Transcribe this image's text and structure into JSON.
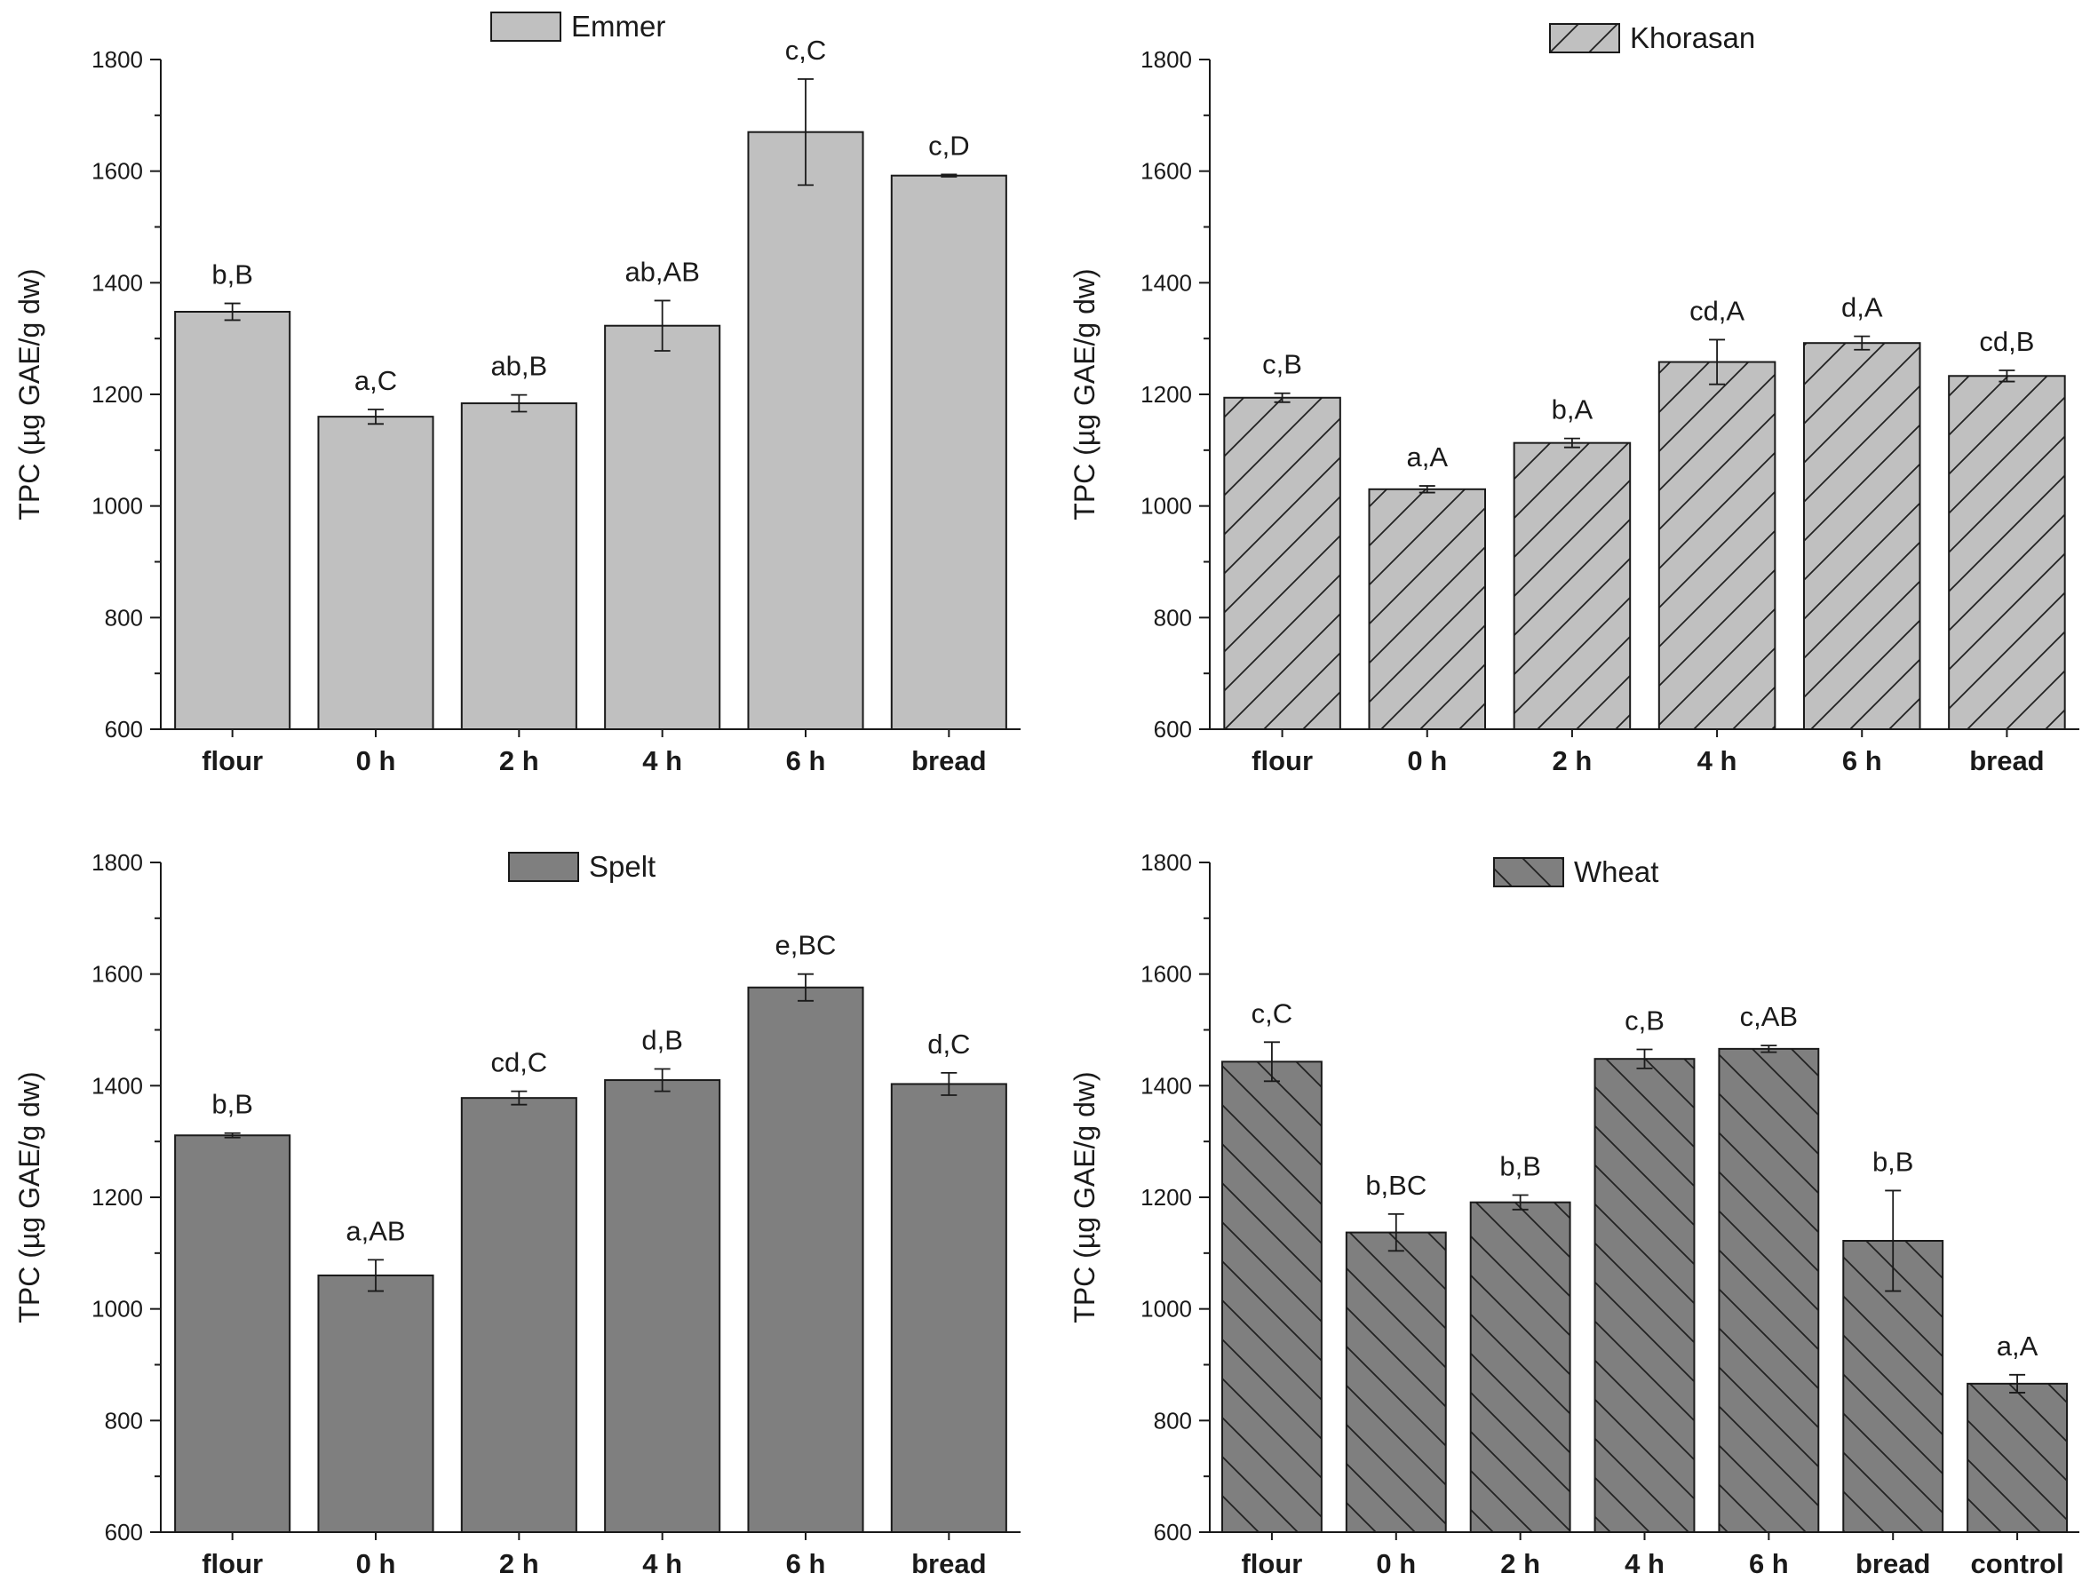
{
  "chart_data": [
    {
      "type": "bar",
      "title": "Emmer",
      "legend": "Emmer",
      "ylabel": "TPC (µg GAE/g dw)",
      "xlabel": "",
      "ylim": [
        600,
        1800
      ],
      "yticks": [
        600,
        800,
        1000,
        1200,
        1400,
        1600,
        1800
      ],
      "categories": [
        "flour",
        "0 h",
        "2 h",
        "4 h",
        "6 h",
        "bread"
      ],
      "values": [
        1348,
        1160,
        1184,
        1323,
        1670,
        1592
      ],
      "errors": [
        15,
        13,
        15,
        45,
        95,
        2
      ],
      "labels": [
        "b,B",
        "a,C",
        "ab,B",
        "ab,AB",
        "c,C",
        "c,D"
      ],
      "fill": "#c0c0c0",
      "hatch": "none"
    },
    {
      "type": "bar",
      "title": "Khorasan",
      "legend": "Khorasan",
      "ylabel": "TPC (µg GAE/g dw)",
      "xlabel": "",
      "ylim": [
        600,
        1800
      ],
      "yticks": [
        600,
        800,
        1000,
        1200,
        1400,
        1600,
        1800
      ],
      "categories": [
        "flour",
        "0 h",
        "2 h",
        "4 h",
        "6 h",
        "bread"
      ],
      "values": [
        1194,
        1030,
        1113,
        1258,
        1292,
        1233
      ],
      "errors": [
        8,
        6,
        8,
        40,
        12,
        10
      ],
      "labels": [
        "c,B",
        "a,A",
        "b,A",
        "cd,A",
        "d,A",
        "cd,B"
      ],
      "fill": "#c0c0c0",
      "hatch": "forward"
    },
    {
      "type": "bar",
      "title": "Spelt",
      "legend": "Spelt",
      "ylabel": "TPC (µg GAE/g dw)",
      "xlabel": "",
      "ylim": [
        600,
        1800
      ],
      "yticks": [
        600,
        800,
        1000,
        1200,
        1400,
        1600,
        1800
      ],
      "categories": [
        "flour",
        "0 h",
        "2 h",
        "4 h",
        "6 h",
        "bread"
      ],
      "values": [
        1311,
        1060,
        1378,
        1410,
        1576,
        1403
      ],
      "errors": [
        4,
        28,
        12,
        20,
        24,
        20
      ],
      "labels": [
        "b,B",
        "a,AB",
        "cd,C",
        "d,B",
        "e,BC",
        "d,C"
      ],
      "fill": "#7f7f7f",
      "hatch": "none"
    },
    {
      "type": "bar",
      "title": "Wheat",
      "legend": "Wheat",
      "ylabel": "TPC (µg GAE/g dw)",
      "xlabel": "",
      "ylim": [
        600,
        1800
      ],
      "yticks": [
        600,
        800,
        1000,
        1200,
        1400,
        1600,
        1800
      ],
      "categories": [
        "flour",
        "0 h",
        "2 h",
        "4 h",
        "6 h",
        "bread",
        "control"
      ],
      "values": [
        1443,
        1137,
        1191,
        1448,
        1466,
        1122,
        866
      ],
      "errors": [
        35,
        33,
        13,
        17,
        6,
        90,
        16
      ],
      "labels": [
        "c,C",
        "b,BC",
        "b,B",
        "c,B",
        "c,AB",
        "b,B",
        "a,A"
      ],
      "fill": "#7f7f7f",
      "hatch": "back"
    }
  ]
}
